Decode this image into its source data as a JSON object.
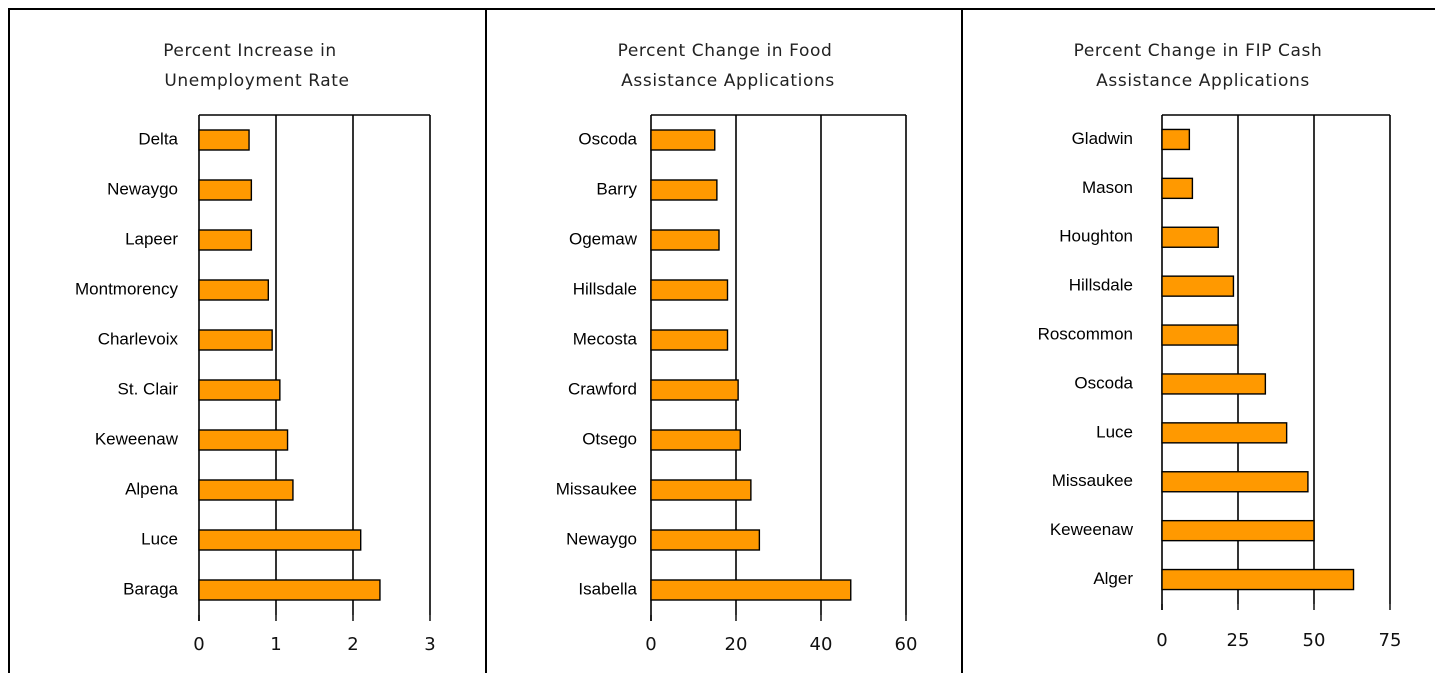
{
  "colors": {
    "bar_fill": "#FF9900",
    "bar_stroke": "#000000",
    "border": "#000000"
  },
  "chart_data": [
    {
      "type": "bar",
      "orientation": "horizontal",
      "title_lines": [
        "Percent Increase in",
        "Unemployment Rate"
      ],
      "categories": [
        "Delta",
        "Newaygo",
        "Lapeer",
        "Montmorency",
        "Charlevoix",
        "St. Clair",
        "Keweenaw",
        "Alpena",
        "Luce",
        "Baraga"
      ],
      "values": [
        0.65,
        0.68,
        0.68,
        0.9,
        0.95,
        1.05,
        1.15,
        1.22,
        2.1,
        2.35
      ],
      "xlim": [
        0,
        3
      ],
      "ticks": [
        0,
        1,
        2,
        3
      ],
      "tick_labels": [
        "0",
        "1",
        "2",
        "3"
      ],
      "grid": true
    },
    {
      "type": "bar",
      "orientation": "horizontal",
      "title_lines": [
        "Percent Change in Food",
        "Assistance Applications"
      ],
      "categories": [
        "Oscoda",
        "Barry",
        "Ogemaw",
        "Hillsdale",
        "Mecosta",
        "Crawford",
        "Otsego",
        "Missaukee",
        "Newaygo",
        "Isabella"
      ],
      "values": [
        15,
        15.5,
        16,
        18,
        18,
        20.5,
        21,
        23.5,
        25.5,
        47
      ],
      "xlim": [
        0,
        60
      ],
      "ticks": [
        0,
        20,
        40,
        60
      ],
      "tick_labels": [
        "0",
        "20",
        "40",
        "60"
      ],
      "grid": true
    },
    {
      "type": "bar",
      "orientation": "horizontal",
      "title_lines": [
        "Percent Change in FIP Cash",
        "Assistance Applications"
      ],
      "categories": [
        "Gladwin",
        "Mason",
        "Houghton",
        "Hillsdale",
        "Roscommon",
        "Oscoda",
        "Luce",
        "Missaukee",
        "Keweenaw",
        "Alger"
      ],
      "values": [
        9,
        10,
        18.5,
        23.5,
        25,
        34,
        41,
        48,
        50,
        63
      ],
      "xlim": [
        0,
        75
      ],
      "ticks": [
        0,
        25,
        50,
        75
      ],
      "tick_labels": [
        "0",
        "25",
        "50",
        "75"
      ],
      "grid": true
    }
  ]
}
